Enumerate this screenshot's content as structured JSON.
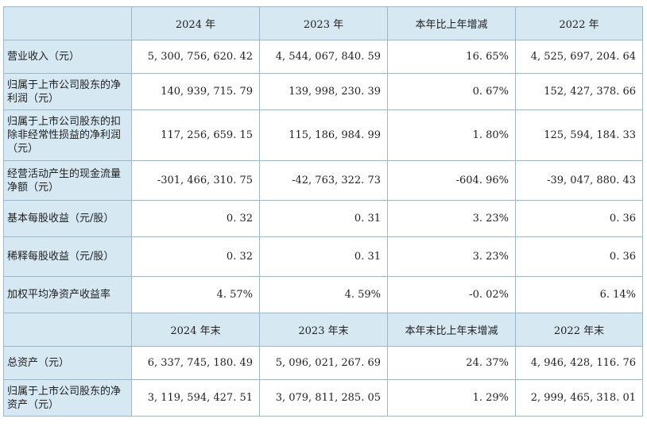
{
  "header1": [
    "2024 年",
    "2023 年",
    "本年比上年增减",
    "2022 年"
  ],
  "rows1": [
    {
      "label": "营业收入（元）",
      "values": [
        "5, 300, 756, 620. 42",
        "4, 544, 067, 840. 59",
        "16. 65%",
        "4, 525, 697, 204. 64"
      ]
    },
    {
      "label": "归属于上市公司股东的净利润（元）",
      "values": [
        "140, 939, 715. 79",
        "139, 998, 230. 39",
        "0. 67%",
        "152, 427, 378. 66"
      ]
    },
    {
      "label": "归属于上市公司股东的扣除非经常性损益的净利润（元）",
      "values": [
        "117, 256, 659. 15",
        "115, 186, 984. 99",
        "1. 80%",
        "125, 594, 184. 33"
      ]
    },
    {
      "label": "经营活动产生的现金流量净额（元）",
      "values": [
        "-301, 466, 310. 75",
        "-42, 763, 322. 73",
        "-604. 96%",
        "-39, 047, 880. 43"
      ]
    },
    {
      "label": "基本每股收益（元/股）",
      "values": [
        "0. 32",
        "0. 31",
        "3. 23%",
        "0. 36"
      ]
    },
    {
      "label": "稀释每股收益（元/股）",
      "values": [
        "0. 32",
        "0. 31",
        "3. 23%",
        "0. 36"
      ]
    },
    {
      "label": "加权平均净资产收益率",
      "values": [
        "4. 57%",
        "4. 59%",
        "-0. 02%",
        "6. 14%"
      ]
    }
  ],
  "header2": [
    "2024 年末",
    "2023 年末",
    "本年末比上年末增减",
    "2022 年末"
  ],
  "rows2": [
    {
      "label": "总资产（元）",
      "values": [
        "6, 337, 745, 180. 49",
        "5, 096, 021, 267. 69",
        "24. 37%",
        "4, 946, 428, 116. 76"
      ]
    },
    {
      "label": "归属于上市公司股东的净资产（元）",
      "values": [
        "3, 119, 594, 427. 51",
        "3, 079, 811, 285. 05",
        "1. 29%",
        "2, 999, 465, 318. 01"
      ]
    }
  ]
}
